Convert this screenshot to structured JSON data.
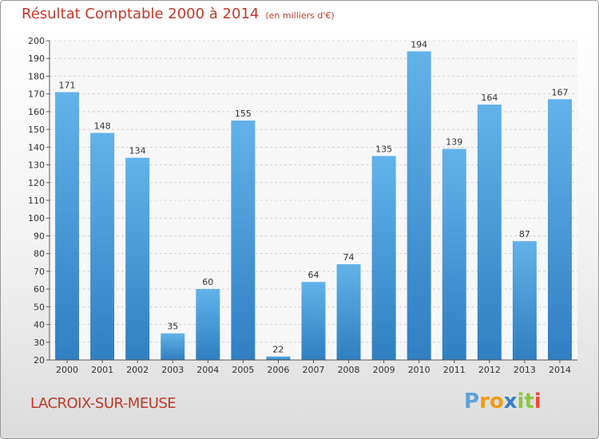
{
  "title": "Résultat Comptable 2000 à 2014",
  "unit": "(en milliers d'€)",
  "place": "LACROIX-SUR-MEUSE",
  "logo": {
    "letters": [
      "P",
      "r",
      "o",
      "x",
      "i",
      "t",
      "i"
    ],
    "colors": [
      "#5aa3d8",
      "#f39c12",
      "#f39c12",
      "#3a7fc4",
      "#8cc63f",
      "#8cc63f",
      "#e74c3c"
    ]
  },
  "colors": {
    "bar": "#3a8fd6",
    "bar_light": "#62b2ea",
    "title": "#c0392b",
    "grid": "#bbbbbb"
  },
  "chart_data": {
    "type": "bar",
    "title": "Résultat Comptable 2000 à 2014",
    "ylabel": "(en milliers d'€)",
    "xlabel": "",
    "categories": [
      "2000",
      "2001",
      "2002",
      "2003",
      "2004",
      "2005",
      "2006",
      "2007",
      "2008",
      "2009",
      "2010",
      "2011",
      "2012",
      "2013",
      "2014"
    ],
    "values": [
      171,
      148,
      134,
      35,
      60,
      155,
      22,
      64,
      74,
      135,
      194,
      139,
      164,
      87,
      167
    ],
    "ylim": [
      20,
      200
    ],
    "yticks": [
      20,
      30,
      40,
      50,
      60,
      70,
      80,
      90,
      100,
      110,
      120,
      130,
      140,
      150,
      160,
      170,
      180,
      190,
      200
    ],
    "grid": true
  }
}
